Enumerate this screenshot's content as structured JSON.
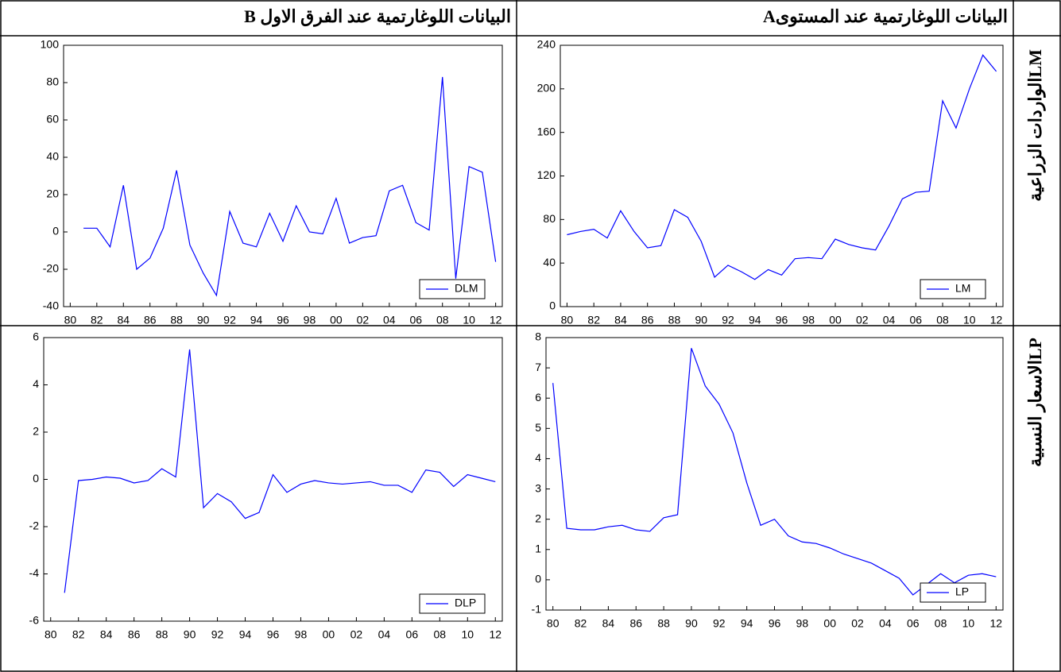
{
  "header": {
    "level": "البيانات اللوغارتمية عند المستوىA",
    "difference": "البيانات اللوغارتمية عند الفرق الاول B"
  },
  "row_labels": [
    "LMالواردات الزراعية",
    "LPالاسعار النسبية"
  ],
  "chart_data": [
    {
      "type": "line",
      "x": [
        1981,
        1982,
        1983,
        1984,
        1985,
        1986,
        1987,
        1988,
        1989,
        1990,
        1991,
        1992,
        1993,
        1994,
        1995,
        1996,
        1997,
        1998,
        1999,
        2000,
        2001,
        2002,
        2003,
        2004,
        2005,
        2006,
        2007,
        2008,
        2009,
        2010,
        2011,
        2012
      ],
      "series": [
        {
          "name": "DLM",
          "color": "#0000ff",
          "values": [
            2,
            2,
            -8,
            25,
            -20,
            -14,
            2,
            33,
            -7,
            -22,
            -34,
            11,
            -6,
            -8,
            10,
            -5,
            14,
            0,
            -1,
            18,
            -6,
            -3,
            -2,
            22,
            25,
            5,
            1,
            83,
            -25,
            35,
            32,
            -16
          ]
        }
      ],
      "xlim": [
        1979.5,
        2012.5
      ],
      "xticks": [
        {
          "value": 1980,
          "label": "80"
        },
        {
          "value": 1982,
          "label": "82"
        },
        {
          "value": 1984,
          "label": "84"
        },
        {
          "value": 1986,
          "label": "86"
        },
        {
          "value": 1988,
          "label": "88"
        },
        {
          "value": 1990,
          "label": "90"
        },
        {
          "value": 1992,
          "label": "92"
        },
        {
          "value": 1994,
          "label": "94"
        },
        {
          "value": 1996,
          "label": "96"
        },
        {
          "value": 1998,
          "label": "98"
        },
        {
          "value": 2000,
          "label": "00"
        },
        {
          "value": 2002,
          "label": "02"
        },
        {
          "value": 2004,
          "label": "04"
        },
        {
          "value": 2006,
          "label": "06"
        },
        {
          "value": 2008,
          "label": "08"
        },
        {
          "value": 2010,
          "label": "10"
        },
        {
          "value": 2012,
          "label": "12"
        }
      ],
      "ylim": [
        -40,
        100
      ],
      "yticks": [
        -40,
        -20,
        0,
        20,
        40,
        60,
        80,
        100
      ],
      "legend": "lower right"
    },
    {
      "type": "line",
      "x": [
        1980,
        1981,
        1982,
        1983,
        1984,
        1985,
        1986,
        1987,
        1988,
        1989,
        1990,
        1991,
        1992,
        1993,
        1994,
        1995,
        1996,
        1997,
        1998,
        1999,
        2000,
        2001,
        2002,
        2003,
        2004,
        2005,
        2006,
        2007,
        2008,
        2009,
        2010,
        2011,
        2012
      ],
      "series": [
        {
          "name": "LM",
          "color": "#0000ff",
          "values": [
            66,
            69,
            71,
            63,
            88,
            69,
            54,
            56,
            89,
            82,
            60,
            27,
            38,
            32,
            25,
            34,
            29,
            44,
            45,
            44,
            62,
            57,
            54,
            52,
            74,
            99,
            105,
            106,
            189,
            164,
            200,
            231,
            216
          ]
        }
      ],
      "xlim": [
        1979.5,
        2012.5
      ],
      "xticks": [
        {
          "value": 1980,
          "label": "80"
        },
        {
          "value": 1982,
          "label": "82"
        },
        {
          "value": 1984,
          "label": "84"
        },
        {
          "value": 1986,
          "label": "86"
        },
        {
          "value": 1988,
          "label": "88"
        },
        {
          "value": 1990,
          "label": "90"
        },
        {
          "value": 1992,
          "label": "92"
        },
        {
          "value": 1994,
          "label": "94"
        },
        {
          "value": 1996,
          "label": "96"
        },
        {
          "value": 1998,
          "label": "98"
        },
        {
          "value": 2000,
          "label": "00"
        },
        {
          "value": 2002,
          "label": "02"
        },
        {
          "value": 2004,
          "label": "04"
        },
        {
          "value": 2006,
          "label": "06"
        },
        {
          "value": 2008,
          "label": "08"
        },
        {
          "value": 2010,
          "label": "10"
        },
        {
          "value": 2012,
          "label": "12"
        }
      ],
      "ylim": [
        0,
        240
      ],
      "yticks": [
        0,
        40,
        80,
        120,
        160,
        200,
        240
      ],
      "legend": "lower right"
    },
    {
      "type": "line",
      "x": [
        1981,
        1982,
        1983,
        1984,
        1985,
        1986,
        1987,
        1988,
        1989,
        1990,
        1991,
        1992,
        1993,
        1994,
        1995,
        1996,
        1997,
        1998,
        1999,
        2000,
        2001,
        2002,
        2003,
        2004,
        2005,
        2006,
        2007,
        2008,
        2009,
        2010,
        2011,
        2012
      ],
      "series": [
        {
          "name": "DLP",
          "color": "#0000ff",
          "values": [
            -4.8,
            -0.05,
            0,
            0.1,
            0.05,
            -0.15,
            -0.05,
            0.45,
            0.1,
            5.5,
            -1.2,
            -0.6,
            -0.95,
            -1.65,
            -1.4,
            0.2,
            -0.55,
            -0.2,
            -0.05,
            -0.15,
            -0.2,
            -0.15,
            -0.1,
            -0.25,
            -0.25,
            -0.55,
            0.4,
            0.3,
            -0.3,
            0.2,
            0.05,
            -0.1
          ]
        }
      ],
      "xlim": [
        1979.5,
        2012.5
      ],
      "xticks": [
        {
          "value": 1980,
          "label": "80"
        },
        {
          "value": 1982,
          "label": "82"
        },
        {
          "value": 1984,
          "label": "84"
        },
        {
          "value": 1986,
          "label": "86"
        },
        {
          "value": 1988,
          "label": "88"
        },
        {
          "value": 1990,
          "label": "90"
        },
        {
          "value": 1992,
          "label": "92"
        },
        {
          "value": 1994,
          "label": "94"
        },
        {
          "value": 1996,
          "label": "96"
        },
        {
          "value": 1998,
          "label": "98"
        },
        {
          "value": 2000,
          "label": "00"
        },
        {
          "value": 2002,
          "label": "02"
        },
        {
          "value": 2004,
          "label": "04"
        },
        {
          "value": 2006,
          "label": "06"
        },
        {
          "value": 2008,
          "label": "08"
        },
        {
          "value": 2010,
          "label": "10"
        },
        {
          "value": 2012,
          "label": "12"
        }
      ],
      "ylim": [
        -6,
        6
      ],
      "yticks": [
        -6,
        -4,
        -2,
        0,
        2,
        4,
        6
      ],
      "legend": "lower right"
    },
    {
      "type": "line",
      "x": [
        1980,
        1981,
        1982,
        1983,
        1984,
        1985,
        1986,
        1987,
        1988,
        1989,
        1990,
        1991,
        1992,
        1993,
        1994,
        1995,
        1996,
        1997,
        1998,
        1999,
        2000,
        2001,
        2002,
        2003,
        2004,
        2005,
        2006,
        2007,
        2008,
        2009,
        2010,
        2011,
        2012
      ],
      "series": [
        {
          "name": "LP",
          "color": "#0000ff",
          "values": [
            6.5,
            1.7,
            1.65,
            1.65,
            1.75,
            1.8,
            1.65,
            1.6,
            2.05,
            2.15,
            7.65,
            6.4,
            5.8,
            4.85,
            3.2,
            1.8,
            2.0,
            1.45,
            1.25,
            1.2,
            1.05,
            0.85,
            0.7,
            0.55,
            0.3,
            0.05,
            -0.5,
            -0.15,
            0.2,
            -0.1,
            0.15,
            0.2,
            0.1
          ]
        }
      ],
      "xlim": [
        1979.5,
        2012.5
      ],
      "xticks": [
        {
          "value": 1980,
          "label": "80"
        },
        {
          "value": 1982,
          "label": "82"
        },
        {
          "value": 1984,
          "label": "84"
        },
        {
          "value": 1986,
          "label": "86"
        },
        {
          "value": 1988,
          "label": "88"
        },
        {
          "value": 1990,
          "label": "90"
        },
        {
          "value": 1992,
          "label": "92"
        },
        {
          "value": 1994,
          "label": "94"
        },
        {
          "value": 1996,
          "label": "96"
        },
        {
          "value": 1998,
          "label": "98"
        },
        {
          "value": 2000,
          "label": "00"
        },
        {
          "value": 2002,
          "label": "02"
        },
        {
          "value": 2004,
          "label": "04"
        },
        {
          "value": 2006,
          "label": "06"
        },
        {
          "value": 2008,
          "label": "08"
        },
        {
          "value": 2010,
          "label": "10"
        },
        {
          "value": 2012,
          "label": "12"
        }
      ],
      "ylim": [
        -1,
        8
      ],
      "yticks": [
        -1,
        0,
        1,
        2,
        3,
        4,
        5,
        6,
        7,
        8
      ],
      "legend": "lower right"
    }
  ]
}
